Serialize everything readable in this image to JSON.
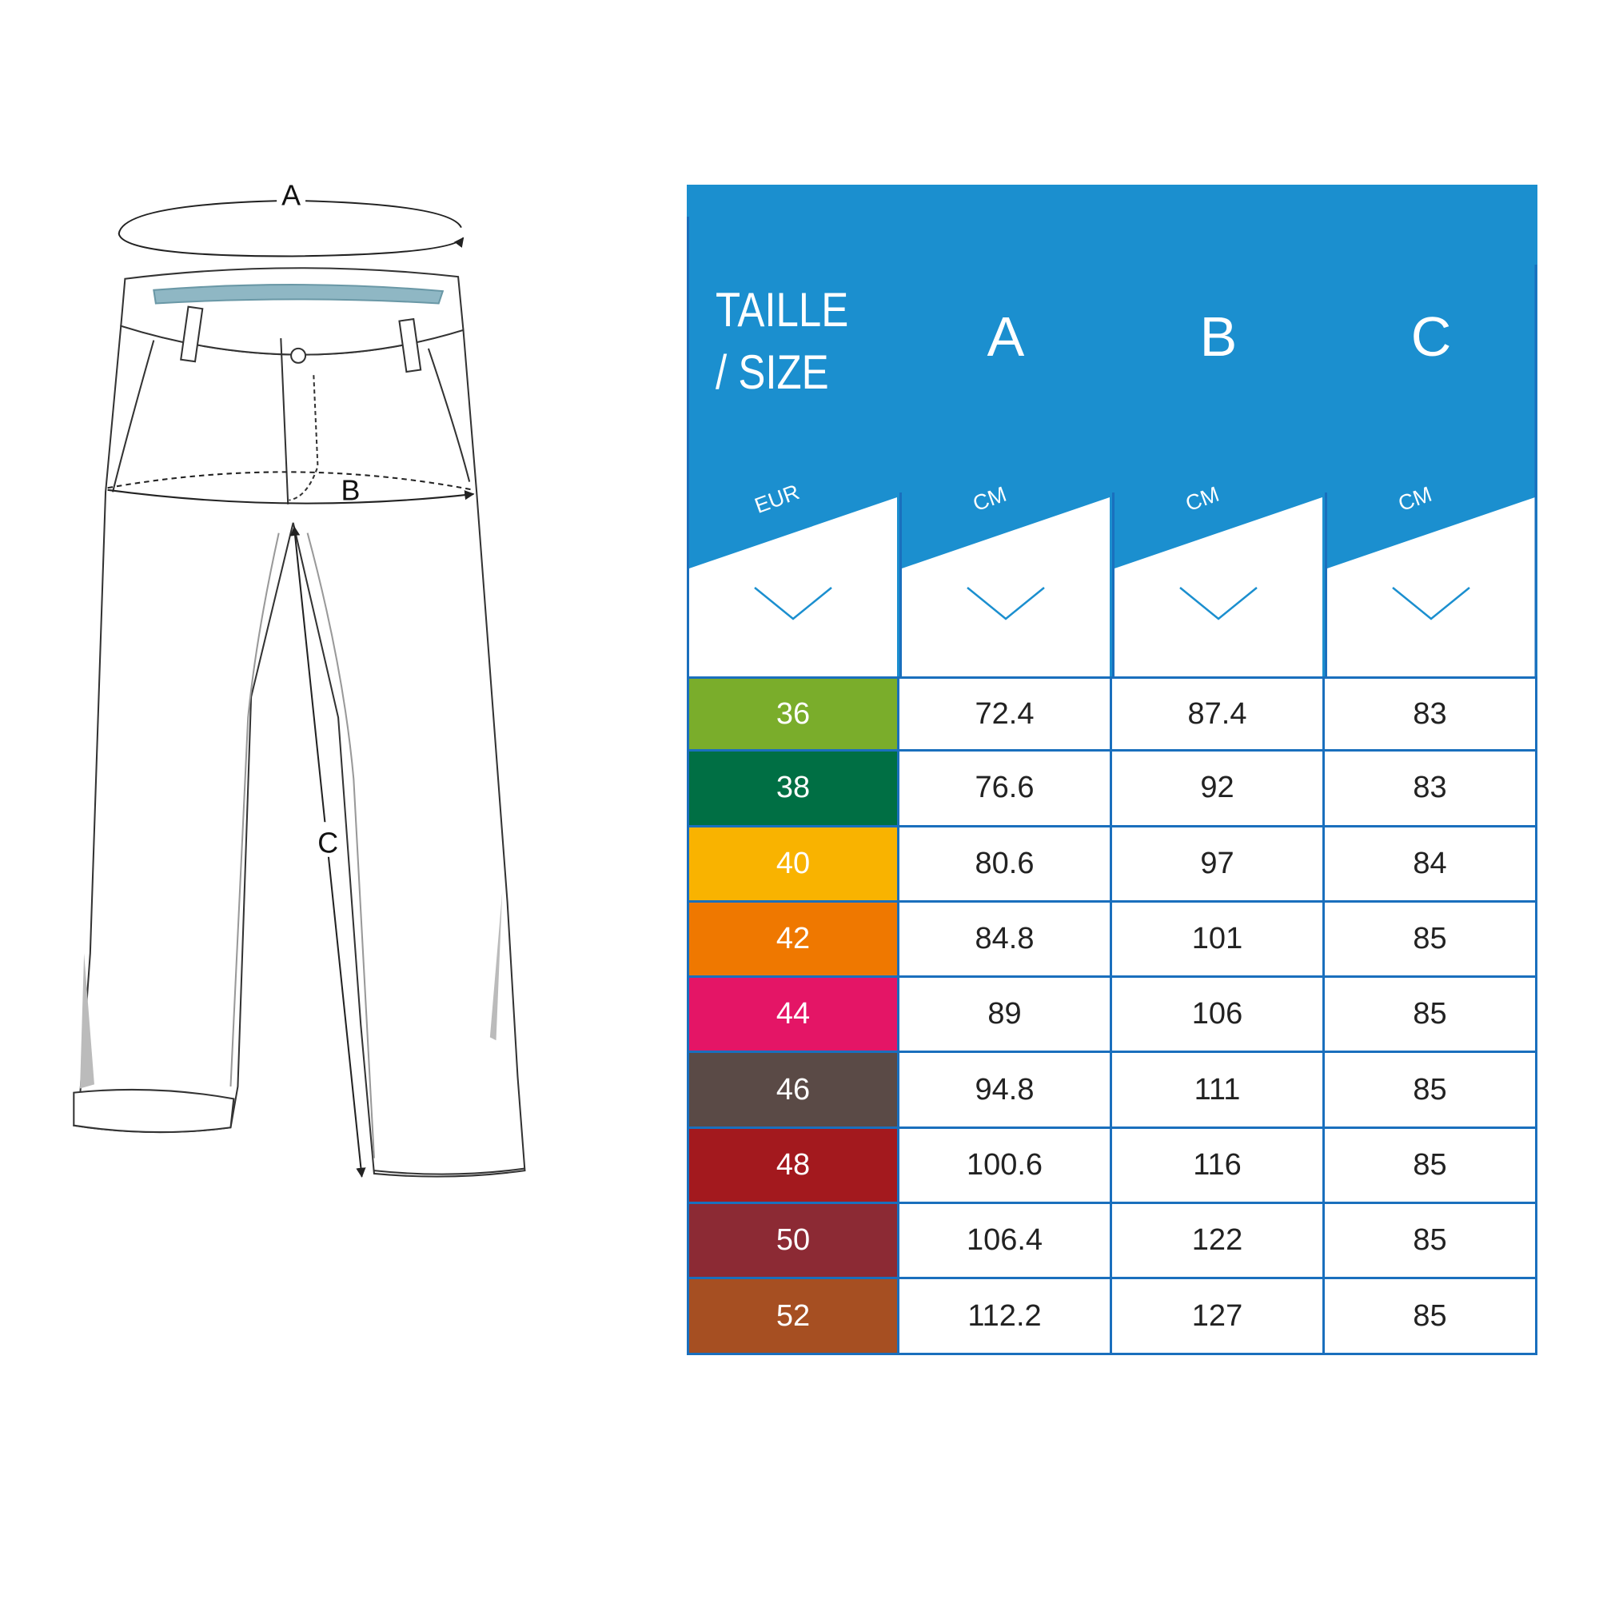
{
  "diagram": {
    "labels": {
      "a": "A",
      "b": "B",
      "c": "C"
    }
  },
  "size_table": {
    "header": {
      "size_title_line1": "TAILLE",
      "size_title_line2": "/ SIZE",
      "columns": [
        "A",
        "B",
        "C"
      ],
      "size_unit": "EUR",
      "units": [
        "CM",
        "CM",
        "CM"
      ]
    },
    "colors": {
      "header_blue": "#1b8fcf",
      "border_blue": "#1a6fbd"
    },
    "rows": [
      {
        "size": "36",
        "a": "72.4",
        "b": "87.4",
        "c": "83",
        "color": "#7aad2b"
      },
      {
        "size": "38",
        "a": "76.6",
        "b": "92",
        "c": "83",
        "color": "#006f44"
      },
      {
        "size": "40",
        "a": "80.6",
        "b": "97",
        "c": "84",
        "color": "#f9b300"
      },
      {
        "size": "42",
        "a": "84.8",
        "b": "101",
        "c": "85",
        "color": "#ef7800"
      },
      {
        "size": "44",
        "a": "89",
        "b": "106",
        "c": "85",
        "color": "#e41566"
      },
      {
        "size": "46",
        "a": "94.8",
        "b": "111",
        "c": "85",
        "color": "#5a4a46"
      },
      {
        "size": "48",
        "a": "100.6",
        "b": "116",
        "c": "85",
        "color": "#a3191e"
      },
      {
        "size": "50",
        "a": "106.4",
        "b": "122",
        "c": "85",
        "color": "#8c2a34"
      },
      {
        "size": "52",
        "a": "112.2",
        "b": "127",
        "c": "85",
        "color": "#a64f22"
      }
    ]
  }
}
